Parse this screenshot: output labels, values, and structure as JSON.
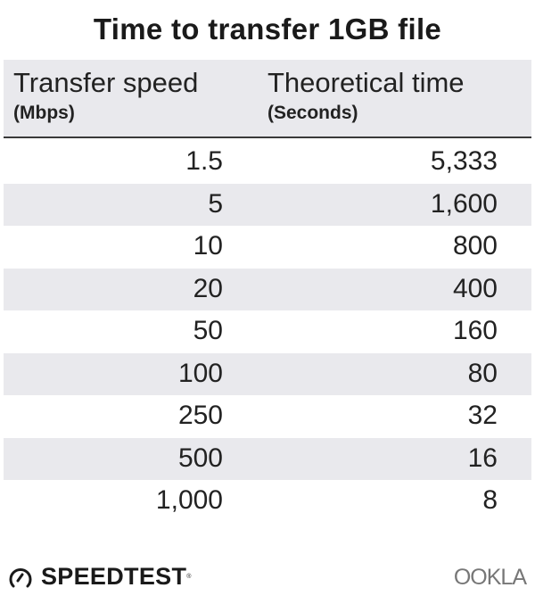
{
  "chart_data": {
    "type": "table",
    "title": "Time to transfer 1GB file",
    "columns": [
      {
        "label": "Transfer speed",
        "unit": "(Mbps)"
      },
      {
        "label": "Theoretical time",
        "unit": "(Seconds)"
      }
    ],
    "rows": [
      [
        "1.5",
        "5,333"
      ],
      [
        "5",
        "1,600"
      ],
      [
        "10",
        "800"
      ],
      [
        "20",
        "400"
      ],
      [
        "50",
        "160"
      ],
      [
        "100",
        "80"
      ],
      [
        "250",
        "32"
      ],
      [
        "500",
        "16"
      ],
      [
        "1,000",
        "8"
      ]
    ],
    "row_stripe_color": "#e9e9ed"
  },
  "branding": {
    "speedtest": "SPEEDTEST",
    "speedtest_icon": "gauge-icon",
    "ookla": "OOKLA"
  }
}
